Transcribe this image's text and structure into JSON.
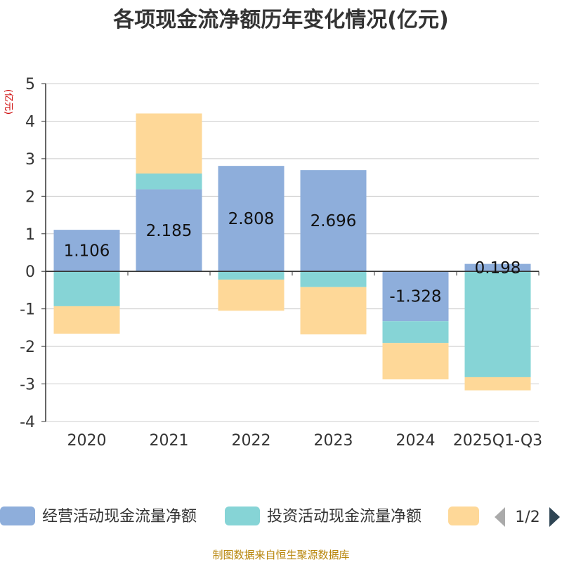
{
  "chart_data": {
    "type": "bar",
    "stacked": true,
    "title": "各项现金流净额历年变化情况(亿元)",
    "ylabel": "(亿元)",
    "ylim": [
      -4,
      5
    ],
    "yticks": [
      "5",
      "4",
      "3",
      "2",
      "1",
      "0",
      "-1",
      "-2",
      "-3",
      "-4"
    ],
    "categories": [
      "2020",
      "2021",
      "2022",
      "2023",
      "2024",
      "2025Q1-Q3"
    ],
    "series": [
      {
        "name": "经营活动现金流量净额",
        "color": "#8eaedb",
        "values": [
          1.106,
          2.185,
          2.808,
          2.696,
          -1.328,
          0.198
        ],
        "labels": [
          "1.106",
          "2.185",
          "2.808",
          "2.696",
          "-1.328",
          "0.198"
        ]
      },
      {
        "name": "投资活动现金流量净额",
        "color": "#86d4d6",
        "values": [
          -0.93,
          0.42,
          -0.22,
          -0.42,
          -0.58,
          -2.82
        ]
      },
      {
        "name": "",
        "color": "#fed898",
        "values": [
          -0.73,
          1.6,
          -0.83,
          -1.26,
          -0.97,
          -0.35
        ]
      }
    ],
    "legend": {
      "position": "bottom",
      "pager": "1/2"
    }
  },
  "footer": {
    "source": "制图数据来自恒生聚源数据库"
  }
}
